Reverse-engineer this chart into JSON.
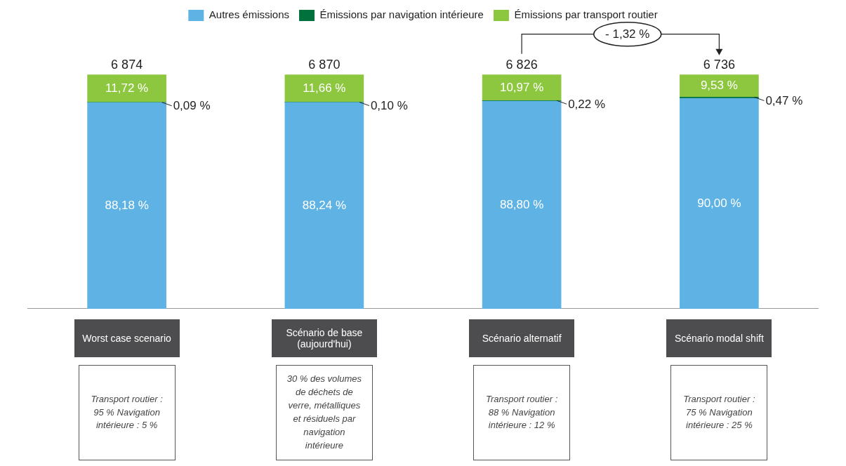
{
  "chart_data": {
    "type": "bar",
    "stacked": true,
    "legend": "top",
    "categories": [
      "Worst case scenario",
      "Scénario de base (aujourd'hui)",
      "Scénario alternatif",
      "Scénario modal shift"
    ],
    "series": [
      {
        "name": "Autres émissions",
        "color": "#5eb3e4",
        "values": [
          88.18,
          88.24,
          88.8,
          90.0
        ],
        "value_labels": [
          "88,18 %",
          "88,24 %",
          "88,80 %",
          "90,00 %"
        ]
      },
      {
        "name": "Émissions par navigation intérieure",
        "color": "#00703c",
        "values": [
          0.09,
          0.1,
          0.22,
          0.47
        ],
        "value_labels": [
          "0,09 %",
          "0,10 %",
          "0,22 %",
          "0,47 %"
        ]
      },
      {
        "name": "Émissions par transport routier",
        "color": "#8dc63f",
        "values": [
          11.72,
          11.66,
          10.97,
          9.53
        ],
        "value_labels": [
          "11,72 %",
          "11,66 %",
          "10,97 %",
          "9,53 %"
        ]
      }
    ],
    "annotations": [
      {
        "text": "6 874",
        "x": "Worst case scenario",
        "y": 100
      },
      {
        "text": "6 870",
        "x": "Scénario de base (aujourd'hui)",
        "y": 100
      },
      {
        "text": "6 826",
        "x": "Scénario alternatif",
        "y": 100
      },
      {
        "text": "6 736",
        "x": "Scénario modal shift",
        "y": 100
      },
      "- 1,32 %",
      "Transport routier : 95 % Navigation intérieure : 5 %",
      "30 % des volumes de déchets de verre, métalliques et résiduels par navigation intérieure",
      "Transport routier : 88 % Navigation intérieure : 12 %",
      "Transport routier : 75 % Navigation intérieure : 25 %"
    ]
  }
}
